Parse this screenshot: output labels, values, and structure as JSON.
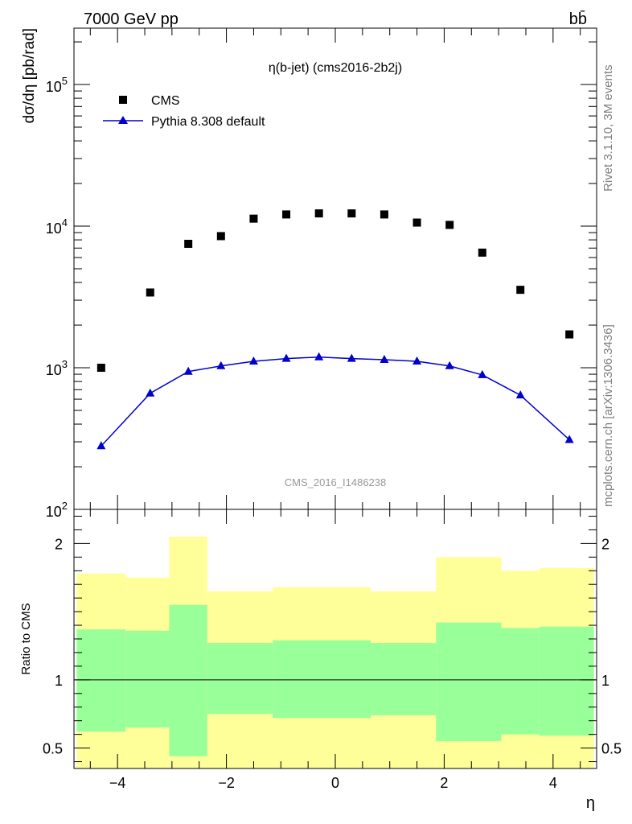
{
  "header": {
    "left_label": "7000 GeV pp",
    "right_label": "bb̄"
  },
  "side_labels": {
    "rivet": "Rivet 3.1.10,  3M events",
    "mcplots": "mcplots.cern.ch [arXiv:1306.3436]"
  },
  "watermark": "CMS_2016_I1486238",
  "chart_data": [
    {
      "type": "scatter",
      "title": "η(b-jet) (cms2016-2b2j)",
      "ylabel": "dσ/dη [pb/rad]",
      "yscale": "log",
      "ylim": [
        100,
        250000
      ],
      "xlim": [
        -4.8,
        4.8
      ],
      "y_tick_labels": [
        {
          "base": "10",
          "exp": "2",
          "value": 100
        },
        {
          "base": "10",
          "exp": "3",
          "value": 1000
        },
        {
          "base": "10",
          "exp": "4",
          "value": 10000
        },
        {
          "base": "10",
          "exp": "5",
          "value": 100000
        }
      ],
      "legend": {
        "placement": "top-left"
      },
      "series": [
        {
          "name": "CMS",
          "marker": "square",
          "color": "#000000",
          "x": [
            -4.3,
            -3.4,
            -2.7,
            -2.1,
            -1.5,
            -0.9,
            -0.3,
            0.3,
            0.9,
            1.5,
            2.1,
            2.7,
            3.4,
            4.3
          ],
          "y": [
            1000,
            3400,
            7500,
            8500,
            11300,
            12100,
            12300,
            12300,
            12100,
            10600,
            10200,
            6500,
            3550,
            1720
          ]
        },
        {
          "name": "Pythia 8.308 default",
          "marker": "triangle",
          "color": "#0000cc",
          "x": [
            -4.3,
            -3.4,
            -2.7,
            -2.1,
            -1.5,
            -0.9,
            -0.3,
            0.3,
            0.9,
            1.5,
            2.1,
            2.7,
            3.4,
            4.3
          ],
          "y": [
            280,
            660,
            940,
            1030,
            1110,
            1160,
            1190,
            1160,
            1140,
            1110,
            1030,
            890,
            640,
            310
          ]
        }
      ]
    },
    {
      "type": "area",
      "ylabel": "Ratio to CMS",
      "xlabel": "η",
      "xlim": [
        -4.8,
        4.8
      ],
      "ylim": [
        0.35,
        2.25
      ],
      "y_ticks": [
        0.5,
        1,
        2
      ],
      "y_tick_labels": [
        "0.5",
        "1",
        "2"
      ],
      "x_ticks": [
        -4,
        -2,
        0,
        2,
        4
      ],
      "x_tick_labels": [
        "−4",
        "−2",
        "0",
        "2",
        "4"
      ],
      "reference_line": 1,
      "bands": {
        "edges": [
          -4.75,
          -3.85,
          -3.05,
          -2.35,
          -1.15,
          0.65,
          1.85,
          3.05,
          3.75,
          4.75
        ],
        "yellow_color": "#ffff99",
        "green_color": "#99ff99",
        "yellow_low": [
          0.35,
          0.35,
          0.35,
          0.35,
          0.35,
          0.35,
          0.35,
          0.35,
          0.35
        ],
        "yellow_high": [
          1.78,
          1.75,
          2.05,
          1.65,
          1.68,
          1.65,
          1.9,
          1.8,
          1.82
        ],
        "green_low": [
          0.62,
          0.65,
          0.44,
          0.75,
          0.72,
          0.74,
          0.55,
          0.6,
          0.59
        ],
        "green_high": [
          1.37,
          1.36,
          1.55,
          1.27,
          1.29,
          1.27,
          1.42,
          1.38,
          1.39
        ]
      }
    }
  ]
}
